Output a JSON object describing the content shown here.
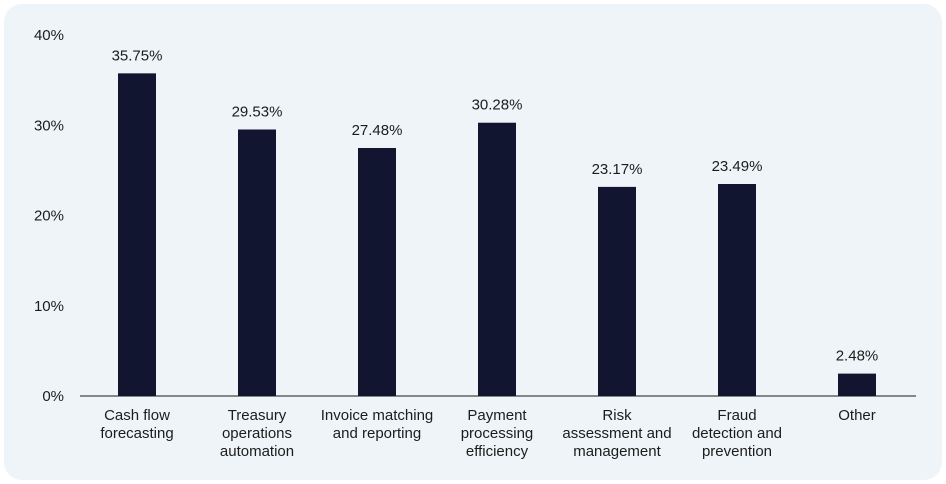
{
  "chart_data": {
    "type": "bar",
    "categories": [
      [
        "Cash flow",
        "forecasting"
      ],
      [
        "Treasury",
        "operations",
        "automation"
      ],
      [
        "Invoice matching",
        "and reporting"
      ],
      [
        "Payment",
        "processing",
        "efficiency"
      ],
      [
        "Risk",
        "assessment and",
        "management"
      ],
      [
        "Fraud",
        "detection and",
        "prevention"
      ],
      [
        "Other"
      ]
    ],
    "values": [
      35.75,
      29.53,
      27.48,
      30.28,
      23.17,
      23.49,
      2.48
    ],
    "value_labels": [
      "35.75%",
      "29.53%",
      "27.48%",
      "30.28%",
      "23.17%",
      "23.49%",
      "2.48%"
    ],
    "yticks": [
      0,
      10,
      20,
      30,
      40
    ],
    "ytick_labels": [
      "0%",
      "10%",
      "20%",
      "30%",
      "40%"
    ],
    "ylim": [
      0,
      40
    ],
    "grid": false,
    "bar_color": "#11152f",
    "background": "#eef4f8"
  }
}
